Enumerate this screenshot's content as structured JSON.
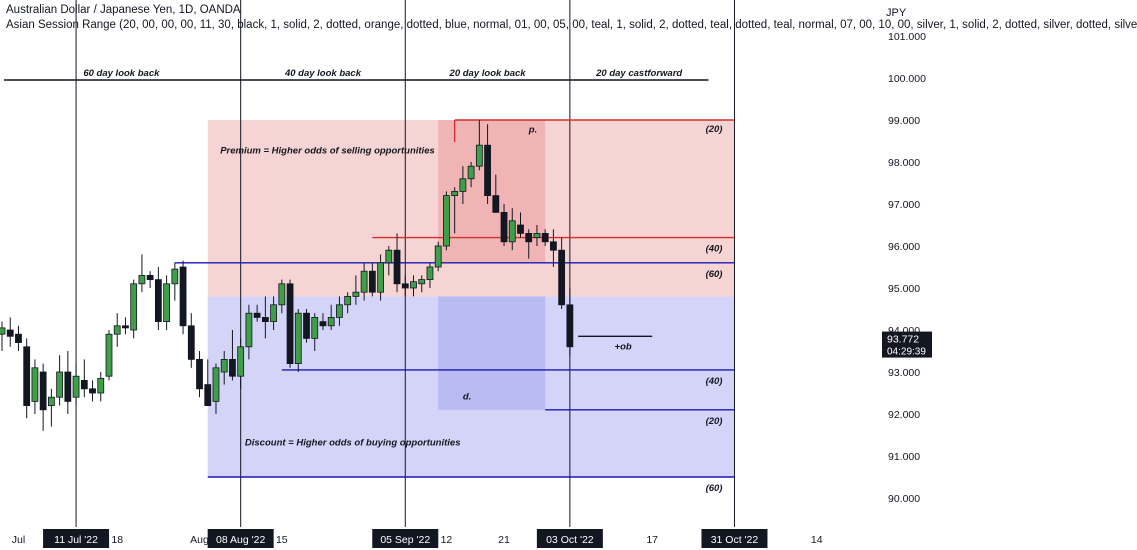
{
  "header": {
    "symbol_title": "Australian Dollar / Japanese Yen, 1D, OANDA",
    "indicator_line": "Asian Session Range (20, 00, 00, 00, 11, 30, black, 1, solid, 2, dotted, orange, dotted, blue, normal, 01, 00, 05, 00, teal, 1, solid, 2, dotted, teal, dotted, teal, normal, 07, 00, 10, 00, silver, 1, solid, 2, dotted, silver, dotted, silve",
    "currency": "JPY"
  },
  "chart_data": {
    "type": "candlestick",
    "y_axis": {
      "min": 89.5,
      "max": 101.5,
      "ticks": [
        "101.000",
        "100.000",
        "99.000",
        "98.000",
        "97.000",
        "96.000",
        "95.000",
        "94.000",
        "93.000",
        "92.000",
        "91.000",
        "90.000"
      ]
    },
    "x_axis": {
      "labels": [
        {
          "text": "Jul",
          "index": 2,
          "boxed": false
        },
        {
          "text": "11 Jul '22",
          "index": 9,
          "boxed": true
        },
        {
          "text": "18",
          "index": 14,
          "boxed": false
        },
        {
          "text": "Aug",
          "index": 24,
          "boxed": false
        },
        {
          "text": "08 Aug '22",
          "index": 29,
          "boxed": true
        },
        {
          "text": "15",
          "index": 34,
          "boxed": false
        },
        {
          "text": "05 Sep '22",
          "index": 49,
          "boxed": true
        },
        {
          "text": "12",
          "index": 54,
          "boxed": false
        },
        {
          "text": "21",
          "index": 61,
          "boxed": false
        },
        {
          "text": "03 Oct '22",
          "index": 69,
          "boxed": true
        },
        {
          "text": "17",
          "index": 79,
          "boxed": false
        },
        {
          "text": "31 Oct '22",
          "index": 89,
          "boxed": true
        },
        {
          "text": "14",
          "index": 99,
          "boxed": false
        }
      ]
    },
    "vertical_lines": [
      9,
      29,
      49,
      69,
      89
    ],
    "lookback_labels": [
      {
        "text": "60 day look back",
        "from": 9,
        "to": 29
      },
      {
        "text": "40 day look back",
        "from": 29,
        "to": 49
      },
      {
        "text": "20 day look back",
        "from": 49,
        "to": 69
      },
      {
        "text": "20 day castforward",
        "from": 69,
        "to": 89
      }
    ],
    "zones": [
      {
        "name": "premium",
        "from": 25,
        "to": 89,
        "top": 99.0,
        "bottom": 94.8,
        "color": "#f6cccc"
      },
      {
        "name": "discount",
        "from": 25,
        "to": 89,
        "top": 94.8,
        "bottom": 90.5,
        "color": "#ccccf8"
      },
      {
        "name": "recent-premium",
        "from": 53,
        "to": 66,
        "top": 99.0,
        "bottom": 95.6,
        "color": "#eb9f9f"
      },
      {
        "name": "recent-discount",
        "from": 53,
        "to": 66,
        "top": 94.8,
        "bottom": 92.1,
        "color": "#a8a8ee"
      }
    ],
    "levels": [
      {
        "price": 99.0,
        "from": 55,
        "to": 89,
        "color": "#d32f2f",
        "label": "(20)",
        "label_pos": "above"
      },
      {
        "price": 96.2,
        "from": 45,
        "to": 89,
        "color": "#d32f2f",
        "label": "(40)",
        "label_pos": "below"
      },
      {
        "price": 95.6,
        "from": 21,
        "to": 89,
        "color": "#1a1ab4",
        "label": "(60)",
        "label_pos": "below"
      },
      {
        "price": 93.05,
        "from": 34,
        "to": 89,
        "color": "#1a1ab4",
        "label": "(40)",
        "label_pos": "below"
      },
      {
        "price": 92.1,
        "from": 66,
        "to": 89,
        "color": "#1a1ab4",
        "label": "(20)",
        "label_pos": "below"
      },
      {
        "price": 90.5,
        "from": 25,
        "to": 89,
        "color": "#1a1ab4",
        "label": "(60)",
        "label_pos": "below"
      },
      {
        "price": 93.85,
        "from": 70,
        "to": 79,
        "color": "#131722",
        "label": "+ob",
        "label_pos": "below-mid"
      }
    ],
    "annotations": [
      {
        "text": "Premium = Higher odds of selling opportunities",
        "index": 27,
        "price": 98.2
      },
      {
        "text": "Discount = Higher odds of buying opportunities",
        "index": 30,
        "price": 91.25
      },
      {
        "text": "p.",
        "index": 64,
        "price": 98.7
      },
      {
        "text": "d.",
        "index": 56,
        "price": 92.35
      }
    ],
    "candles": [
      {
        "o": 93.9,
        "h": 94.2,
        "l": 93.5,
        "c": 94.05
      },
      {
        "o": 94.0,
        "h": 94.3,
        "l": 93.6,
        "c": 93.85
      },
      {
        "o": 93.9,
        "h": 94.1,
        "l": 93.5,
        "c": 93.7
      },
      {
        "o": 93.6,
        "h": 93.8,
        "l": 91.9,
        "c": 92.2
      },
      {
        "o": 92.3,
        "h": 93.3,
        "l": 92.0,
        "c": 93.1
      },
      {
        "o": 93.0,
        "h": 93.2,
        "l": 91.6,
        "c": 92.1
      },
      {
        "o": 92.2,
        "h": 92.6,
        "l": 91.7,
        "c": 92.4
      },
      {
        "o": 92.4,
        "h": 93.4,
        "l": 92.2,
        "c": 93.0
      },
      {
        "o": 93.0,
        "h": 93.5,
        "l": 92.0,
        "c": 92.3
      },
      {
        "o": 92.4,
        "h": 93.2,
        "l": 92.2,
        "c": 92.9
      },
      {
        "o": 92.8,
        "h": 93.3,
        "l": 92.4,
        "c": 92.6
      },
      {
        "o": 92.6,
        "h": 92.8,
        "l": 92.3,
        "c": 92.5
      },
      {
        "o": 92.5,
        "h": 93.0,
        "l": 92.3,
        "c": 92.85
      },
      {
        "o": 92.9,
        "h": 94.0,
        "l": 92.8,
        "c": 93.9
      },
      {
        "o": 93.9,
        "h": 94.4,
        "l": 93.6,
        "c": 94.1
      },
      {
        "o": 94.1,
        "h": 94.3,
        "l": 93.9,
        "c": 94.05
      },
      {
        "o": 94.0,
        "h": 95.2,
        "l": 93.8,
        "c": 95.1
      },
      {
        "o": 95.1,
        "h": 95.8,
        "l": 94.9,
        "c": 95.3
      },
      {
        "o": 95.3,
        "h": 95.4,
        "l": 95.0,
        "c": 95.2
      },
      {
        "o": 95.2,
        "h": 95.5,
        "l": 94.0,
        "c": 94.2
      },
      {
        "o": 94.2,
        "h": 95.3,
        "l": 94.0,
        "c": 95.1
      },
      {
        "o": 95.1,
        "h": 95.6,
        "l": 94.7,
        "c": 95.45
      },
      {
        "o": 95.5,
        "h": 95.65,
        "l": 93.9,
        "c": 94.1
      },
      {
        "o": 94.1,
        "h": 94.4,
        "l": 93.1,
        "c": 93.3
      },
      {
        "o": 93.3,
        "h": 93.5,
        "l": 92.4,
        "c": 92.6
      },
      {
        "o": 92.7,
        "h": 93.3,
        "l": 92.2,
        "c": 92.2
      },
      {
        "o": 92.3,
        "h": 93.2,
        "l": 92.0,
        "c": 93.1
      },
      {
        "o": 93.0,
        "h": 93.5,
        "l": 92.7,
        "c": 93.3
      },
      {
        "o": 93.3,
        "h": 94.0,
        "l": 92.8,
        "c": 92.9
      },
      {
        "o": 92.9,
        "h": 93.8,
        "l": 92.6,
        "c": 93.6
      },
      {
        "o": 93.6,
        "h": 94.6,
        "l": 93.3,
        "c": 94.4
      },
      {
        "o": 94.4,
        "h": 94.6,
        "l": 94.2,
        "c": 94.3
      },
      {
        "o": 94.3,
        "h": 94.8,
        "l": 93.8,
        "c": 94.2
      },
      {
        "o": 94.2,
        "h": 94.8,
        "l": 94.0,
        "c": 94.6
      },
      {
        "o": 94.6,
        "h": 95.2,
        "l": 94.4,
        "c": 95.1
      },
      {
        "o": 95.1,
        "h": 95.2,
        "l": 93.1,
        "c": 93.2
      },
      {
        "o": 93.2,
        "h": 94.5,
        "l": 93.0,
        "c": 94.4
      },
      {
        "o": 94.4,
        "h": 94.5,
        "l": 93.7,
        "c": 93.8
      },
      {
        "o": 93.8,
        "h": 94.4,
        "l": 93.5,
        "c": 94.3
      },
      {
        "o": 94.2,
        "h": 94.4,
        "l": 94.0,
        "c": 94.1
      },
      {
        "o": 94.1,
        "h": 94.6,
        "l": 94.0,
        "c": 94.3
      },
      {
        "o": 94.3,
        "h": 94.8,
        "l": 94.1,
        "c": 94.6
      },
      {
        "o": 94.6,
        "h": 94.9,
        "l": 94.4,
        "c": 94.8
      },
      {
        "o": 94.8,
        "h": 95.3,
        "l": 94.6,
        "c": 94.9
      },
      {
        "o": 94.9,
        "h": 95.6,
        "l": 94.7,
        "c": 95.4
      },
      {
        "o": 95.4,
        "h": 95.6,
        "l": 94.8,
        "c": 94.9
      },
      {
        "o": 94.9,
        "h": 95.8,
        "l": 94.7,
        "c": 95.6
      },
      {
        "o": 95.6,
        "h": 96.0,
        "l": 95.3,
        "c": 95.9
      },
      {
        "o": 95.9,
        "h": 96.3,
        "l": 94.9,
        "c": 95.1
      },
      {
        "o": 95.1,
        "h": 95.3,
        "l": 94.8,
        "c": 95.0
      },
      {
        "o": 95.0,
        "h": 95.3,
        "l": 94.8,
        "c": 95.15
      },
      {
        "o": 95.1,
        "h": 95.3,
        "l": 94.9,
        "c": 95.2
      },
      {
        "o": 95.2,
        "h": 95.6,
        "l": 95.0,
        "c": 95.5
      },
      {
        "o": 95.5,
        "h": 96.1,
        "l": 95.4,
        "c": 96.0
      },
      {
        "o": 96.0,
        "h": 97.3,
        "l": 95.9,
        "c": 97.2
      },
      {
        "o": 97.2,
        "h": 97.4,
        "l": 96.3,
        "c": 97.3
      },
      {
        "o": 97.3,
        "h": 97.9,
        "l": 97.0,
        "c": 97.6
      },
      {
        "o": 97.6,
        "h": 98.0,
        "l": 97.4,
        "c": 97.9
      },
      {
        "o": 97.9,
        "h": 99.0,
        "l": 97.8,
        "c": 98.4
      },
      {
        "o": 98.4,
        "h": 98.9,
        "l": 97.0,
        "c": 97.2
      },
      {
        "o": 97.2,
        "h": 97.7,
        "l": 96.9,
        "c": 96.8
      },
      {
        "o": 96.8,
        "h": 97.0,
        "l": 96.0,
        "c": 96.1
      },
      {
        "o": 96.1,
        "h": 96.9,
        "l": 95.9,
        "c": 96.6
      },
      {
        "o": 96.5,
        "h": 96.8,
        "l": 96.2,
        "c": 96.3
      },
      {
        "o": 96.3,
        "h": 96.4,
        "l": 95.7,
        "c": 96.1
      },
      {
        "o": 96.2,
        "h": 96.5,
        "l": 96.0,
        "c": 96.3
      },
      {
        "o": 96.3,
        "h": 96.4,
        "l": 96.0,
        "c": 96.1
      },
      {
        "o": 96.1,
        "h": 96.4,
        "l": 95.5,
        "c": 95.9
      },
      {
        "o": 95.9,
        "h": 96.2,
        "l": 94.5,
        "c": 94.6
      },
      {
        "o": 94.6,
        "h": 95.0,
        "l": 93.4,
        "c": 93.6
      }
    ],
    "price_tag": {
      "price": 93.772,
      "value": "93.772",
      "countdown": "04:29:39",
      "color": "#131722"
    }
  }
}
